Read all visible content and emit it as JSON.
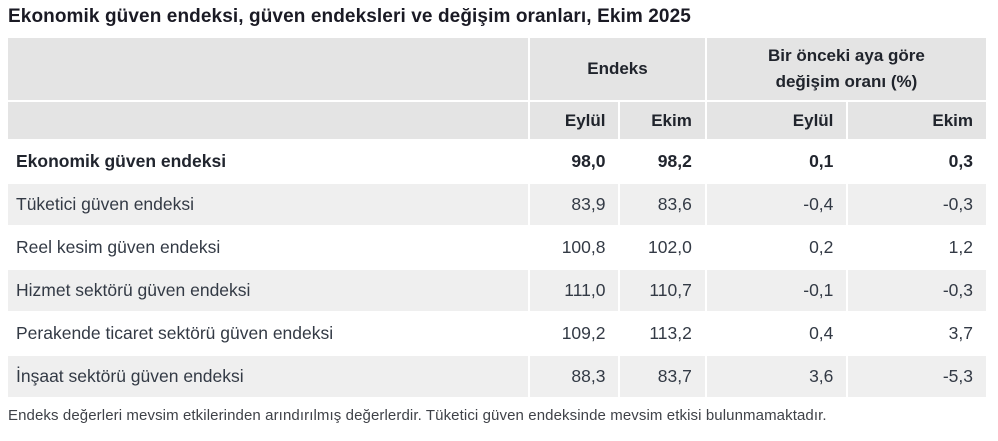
{
  "title": "Ekonomik güven endeksi, güven endeksleri ve değişim oranları, Ekim 2025",
  "table": {
    "group_headers": {
      "index_group": "Endeks",
      "change_group": "Bir önceki aya göre değişim oranı (%)"
    },
    "sub_headers": {
      "index_eylul": "Eylül",
      "index_ekim": "Ekim",
      "change_eylul": "Eylül",
      "change_ekim": "Ekim"
    },
    "rows": [
      {
        "label": "Ekonomik güven endeksi",
        "index_eylul": "98,0",
        "index_ekim": "98,2",
        "change_eylul": "0,1",
        "change_ekim": "0,3"
      },
      {
        "label": "Tüketici güven endeksi",
        "index_eylul": "83,9",
        "index_ekim": "83,6",
        "change_eylul": "-0,4",
        "change_ekim": "-0,3"
      },
      {
        "label": "Reel kesim güven endeksi",
        "index_eylul": "100,8",
        "index_ekim": "102,0",
        "change_eylul": "0,2",
        "change_ekim": "1,2"
      },
      {
        "label": "Hizmet sektörü güven endeksi",
        "index_eylul": "111,0",
        "index_ekim": "110,7",
        "change_eylul": "-0,1",
        "change_ekim": "-0,3"
      },
      {
        "label": "Perakende ticaret sektörü güven endeksi",
        "index_eylul": "109,2",
        "index_ekim": "113,2",
        "change_eylul": "0,4",
        "change_ekim": "3,7"
      },
      {
        "label": "İnşaat sektörü güven endeksi",
        "index_eylul": "88,3",
        "index_ekim": "83,7",
        "change_eylul": "3,6",
        "change_ekim": "-5,3"
      }
    ]
  },
  "footnote": "Endeks değerleri mevsim etkilerinden arındırılmış değerlerdir. Tüketici güven endeksinde mevsim etkisi bulunmamaktadır.",
  "colors": {
    "header_bg": "#e4e4e4",
    "alt_row_bg": "#efefef",
    "row_bg": "#ffffff",
    "title_text": "#1a1a24",
    "cell_text": "#333a45",
    "footnote_text": "#3f4248"
  }
}
